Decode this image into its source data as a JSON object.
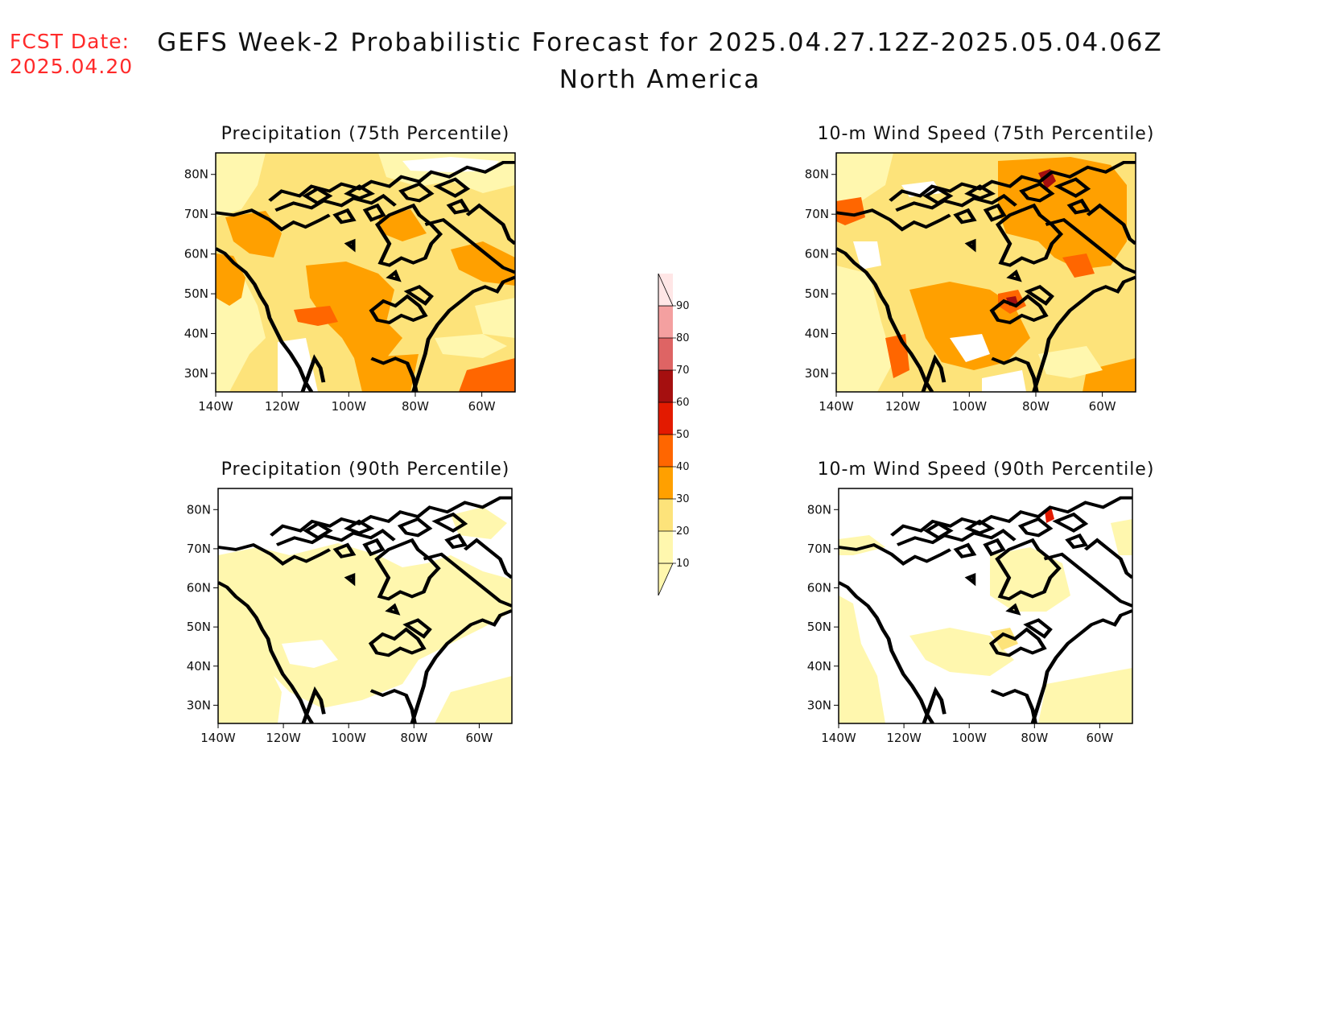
{
  "forecast_date": {
    "label": "FCST Date:",
    "value": "2025.04.20"
  },
  "title": {
    "line1": "GEFS Week-2 Probabilistic Forecast for 2025.04.27.12Z-2025.05.04.06Z",
    "line2": "North America"
  },
  "panels": [
    {
      "title": "Precipitation (75th Percentile)"
    },
    {
      "title": "10-m Wind Speed (75th Percentile)"
    },
    {
      "title": "Precipitation (90th Percentile)"
    },
    {
      "title": "10-m Wind Speed (90th Percentile)"
    }
  ],
  "axes": {
    "lat_labels": [
      "80N",
      "70N",
      "60N",
      "50N",
      "40N",
      "30N"
    ],
    "lon_labels": [
      "140W",
      "120W",
      "100W",
      "80W",
      "60W"
    ]
  },
  "colorbar": {
    "labels": [
      "10",
      "20",
      "30",
      "40",
      "50",
      "60",
      "70",
      "80",
      "90"
    ],
    "colors": [
      "#fff7ae",
      "#fde37a",
      "#ffa000",
      "#ff6600",
      "#e31a00",
      "#a50f0f",
      "#de6464",
      "#f4a0a0",
      "#ffe6e6"
    ]
  },
  "palette": {
    "c10": "#fff7ae",
    "c20": "#fde37a",
    "c30": "#ffa000",
    "c40": "#ff6600",
    "c50": "#e31a00",
    "c60": "#a50f0f",
    "coast": "#000000",
    "date_color": "#ff2a2a"
  }
}
